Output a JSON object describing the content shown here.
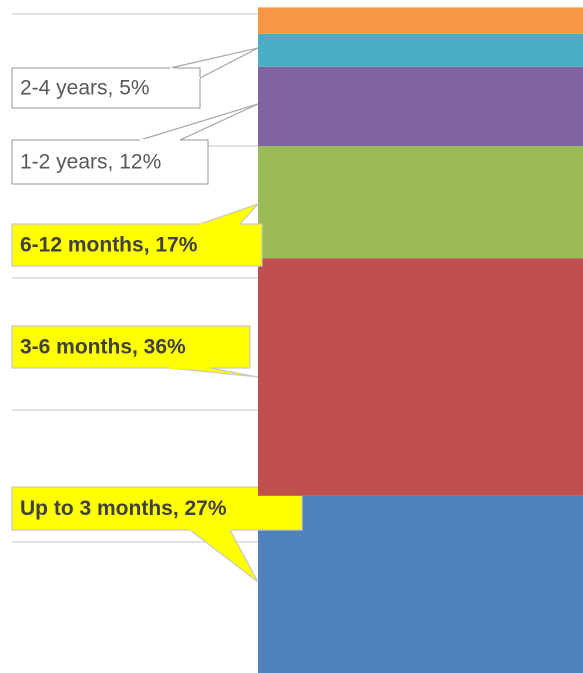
{
  "chart_data": {
    "type": "stacked_bar",
    "ylim": [
      0,
      101
    ],
    "yticks": [
      0,
      20,
      40,
      60,
      80,
      100
    ],
    "grid": true,
    "series": [
      {
        "color": "#4f81bd",
        "values": [
          27
        ],
        "value_labels": [
          "Up to 3 months, 27%"
        ],
        "highlight": true
      },
      {
        "color": "#c0504d",
        "values": [
          36
        ],
        "value_labels": [
          "3-6 months, 36%"
        ],
        "highlight": true
      },
      {
        "color": "#9bbb59",
        "values": [
          17
        ],
        "value_labels": [
          "6-12 months, 17%"
        ],
        "highlight": true
      },
      {
        "color": "#8064a2",
        "values": [
          12
        ],
        "value_labels": [
          "1-2 years, 12%"
        ],
        "highlight": false
      },
      {
        "color": "#4bacc6",
        "values": [
          5
        ],
        "value_labels": [
          "2-4 years, 5%"
        ],
        "highlight": false
      },
      {
        "color": "#f79646",
        "values": [
          4
        ]
      }
    ]
  }
}
